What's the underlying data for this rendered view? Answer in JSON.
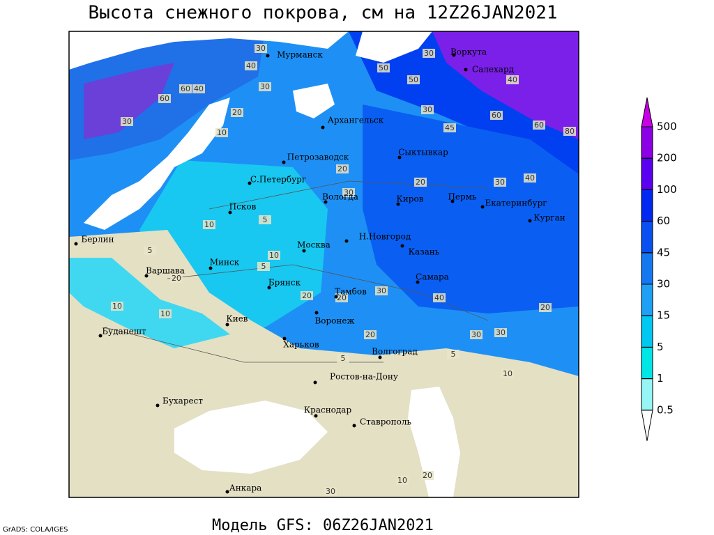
{
  "title": "Высота снежного покрова, см на 12Z26JAN2021",
  "footer": "Модель GFS: 06Z26JAN2021",
  "credit": "GrADS: COLA/IGES",
  "cities": [
    "Мурманск",
    "Воркута",
    "Салехард",
    "Архангельск",
    "Сыктывкар",
    "Петрозаводск",
    "С.Петербург",
    "Вологда",
    "Киров",
    "Пермь",
    "Екатеринбург",
    "Псков",
    "Курган",
    "Н.Новгород",
    "Казань",
    "Берлин",
    "Москва",
    "Минск",
    "Варшава",
    "Самара",
    "Брянск",
    "Тамбов",
    "Воронеж",
    "Киев",
    "Будапешт",
    "Харьков",
    "Волгоград",
    "Ростов-на-Дону",
    "Бухарест",
    "Краснодар",
    "Ставрополь",
    "Анкара"
  ],
  "contour_labels": [
    30,
    40,
    60,
    40,
    60,
    50,
    30,
    50,
    40,
    60,
    60,
    80,
    30,
    45,
    20,
    10,
    20,
    20,
    30,
    30,
    40,
    10,
    5,
    20,
    30,
    30,
    40,
    30,
    5,
    10,
    20,
    20,
    30,
    30,
    20,
    5,
    10,
    5,
    5,
    10,
    20,
    10,
    20,
    10,
    30
  ],
  "colorbar": {
    "levels": [
      0.5,
      1,
      5,
      15,
      30,
      45,
      60,
      100,
      200,
      500
    ],
    "colors": [
      "#ffffff",
      "#96f5f5",
      "#00e6e6",
      "#00c8f0",
      "#1ea0f5",
      "#1478f0",
      "#0a50f0",
      "#0028f0",
      "#5a00f0",
      "#8c00e6",
      "#c800e6"
    ]
  }
}
